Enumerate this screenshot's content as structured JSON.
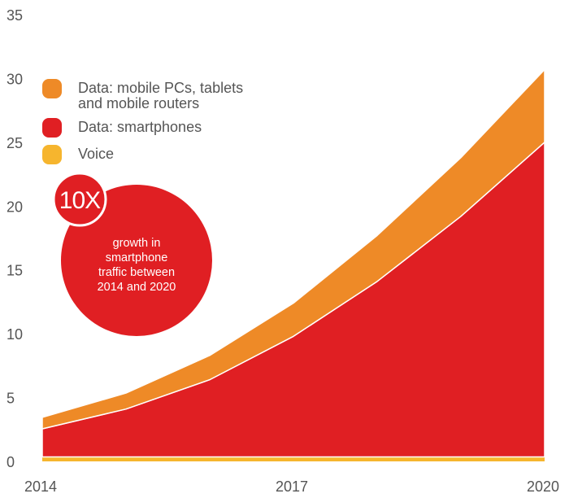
{
  "chart_data": {
    "type": "area",
    "stacked": true,
    "x": [
      2014,
      2015,
      2016,
      2017,
      2018,
      2019,
      2020
    ],
    "x_tick_labels": [
      "2014",
      "2017",
      "2020"
    ],
    "y_tick_labels": [
      "0",
      "5",
      "10",
      "15",
      "20",
      "25",
      "30",
      "35"
    ],
    "ylim": [
      0,
      35
    ],
    "grid": false,
    "legend_placement": "top-left",
    "series": [
      {
        "name": "Voice",
        "color": "#f6b52e",
        "values": [
          0.35,
          0.35,
          0.35,
          0.35,
          0.35,
          0.35,
          0.35
        ]
      },
      {
        "name": "Data: smartphones",
        "color": "#e01f23",
        "values": [
          2.2,
          3.75,
          6.05,
          9.45,
          13.75,
          18.85,
          24.65
        ]
      },
      {
        "name": "Data: mobile PCs, tablets and mobile routers",
        "color": "#ee8a27",
        "values": [
          0.9,
          1.25,
          1.9,
          2.6,
          3.6,
          4.6,
          5.7
        ]
      }
    ],
    "legend": [
      {
        "label": "Data: mobile PCs, tablets",
        "label2": "and mobile routers",
        "color": "#ee8a27"
      },
      {
        "label": "Data: smartphones",
        "color": "#e01f23"
      },
      {
        "label": "Voice",
        "color": "#f6b52e"
      }
    ],
    "annotation": {
      "badge": "10X",
      "lines": [
        "growth in",
        "smartphone",
        "traffic between",
        "2014 and 2020"
      ],
      "color": "#e01f23"
    }
  }
}
